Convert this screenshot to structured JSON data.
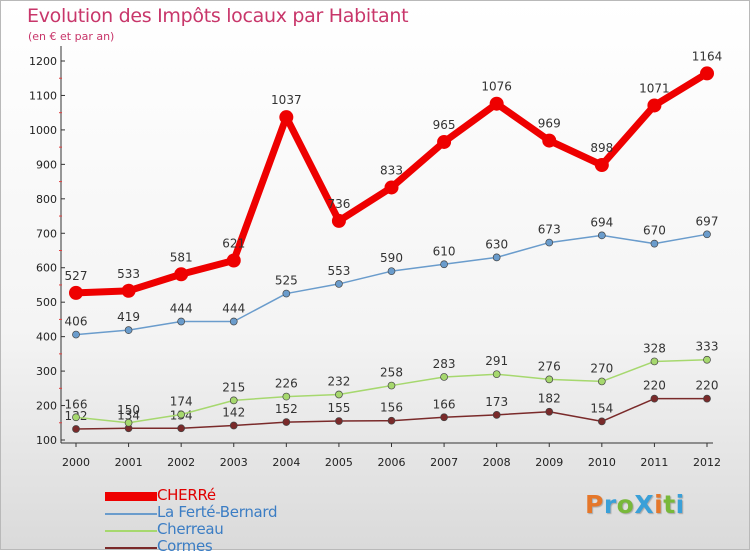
{
  "title": "Evolution des Impôts locaux par Habitant",
  "subtitle": "(en € et par an)",
  "logo": {
    "text": "ProXiti",
    "colors": [
      "#e5772a",
      "#3aa0d8",
      "#78b83a",
      "#3aa0d8",
      "#e5772a",
      "#78b83a",
      "#3aa0d8"
    ]
  },
  "chart_data": {
    "type": "line",
    "title": "Evolution des Impôts locaux par Habitant",
    "ylabel": "en € et par an",
    "xlabel": "",
    "ylim": [
      100,
      1200
    ],
    "yticks": [
      100,
      200,
      300,
      400,
      500,
      600,
      700,
      800,
      900,
      1000,
      1100,
      1200
    ],
    "grid": false,
    "legend_position": "bottom-left",
    "x": [
      "2000",
      "2001",
      "2002",
      "2003",
      "2004",
      "2005",
      "2006",
      "2007",
      "2008",
      "2009",
      "2010",
      "2011",
      "2012"
    ],
    "series": [
      {
        "name": "CHERRé",
        "color": "#ee0000",
        "legend_color": "#e00000",
        "emphasis": true,
        "values": [
          527,
          533,
          581,
          621,
          1037,
          736,
          833,
          965,
          1076,
          969,
          898,
          1071,
          1164
        ],
        "labels": [
          "527",
          "533",
          "581",
          "621",
          "1037",
          "736",
          "833",
          "965",
          "1076",
          "969",
          "898",
          "1071",
          "1164"
        ]
      },
      {
        "name": "La Ferté-Bernard",
        "color": "#6a9ccc",
        "legend_color": "#3b7dc4",
        "values": [
          406,
          419,
          444,
          444,
          525,
          553,
          590,
          610,
          630,
          673,
          694,
          670,
          697
        ],
        "labels": [
          "406",
          "419",
          "444",
          "444",
          "525",
          "553",
          "590",
          "610",
          "630",
          "673",
          "694",
          "670",
          "697"
        ]
      },
      {
        "name": "Cherreau",
        "color": "#a6d86e",
        "legend_color": "#3b7dc4",
        "values": [
          166,
          150,
          174,
          215,
          226,
          232,
          258,
          283,
          291,
          276,
          270,
          328,
          333
        ],
        "labels": [
          "166",
          "150",
          "174",
          "215",
          "226",
          "232",
          "258",
          "283",
          "291",
          "276",
          "270",
          "328",
          "333"
        ]
      },
      {
        "name": "Cormes",
        "color": "#7a2a2a",
        "legend_color": "#3b7dc4",
        "values": [
          132,
          134,
          134,
          142,
          152,
          155,
          156,
          166,
          173,
          182,
          154,
          220,
          220
        ],
        "labels": [
          "132",
          "134",
          "134",
          "142",
          "152",
          "155",
          "156",
          "166",
          "173",
          "182",
          "154",
          "220",
          "220"
        ]
      }
    ]
  }
}
